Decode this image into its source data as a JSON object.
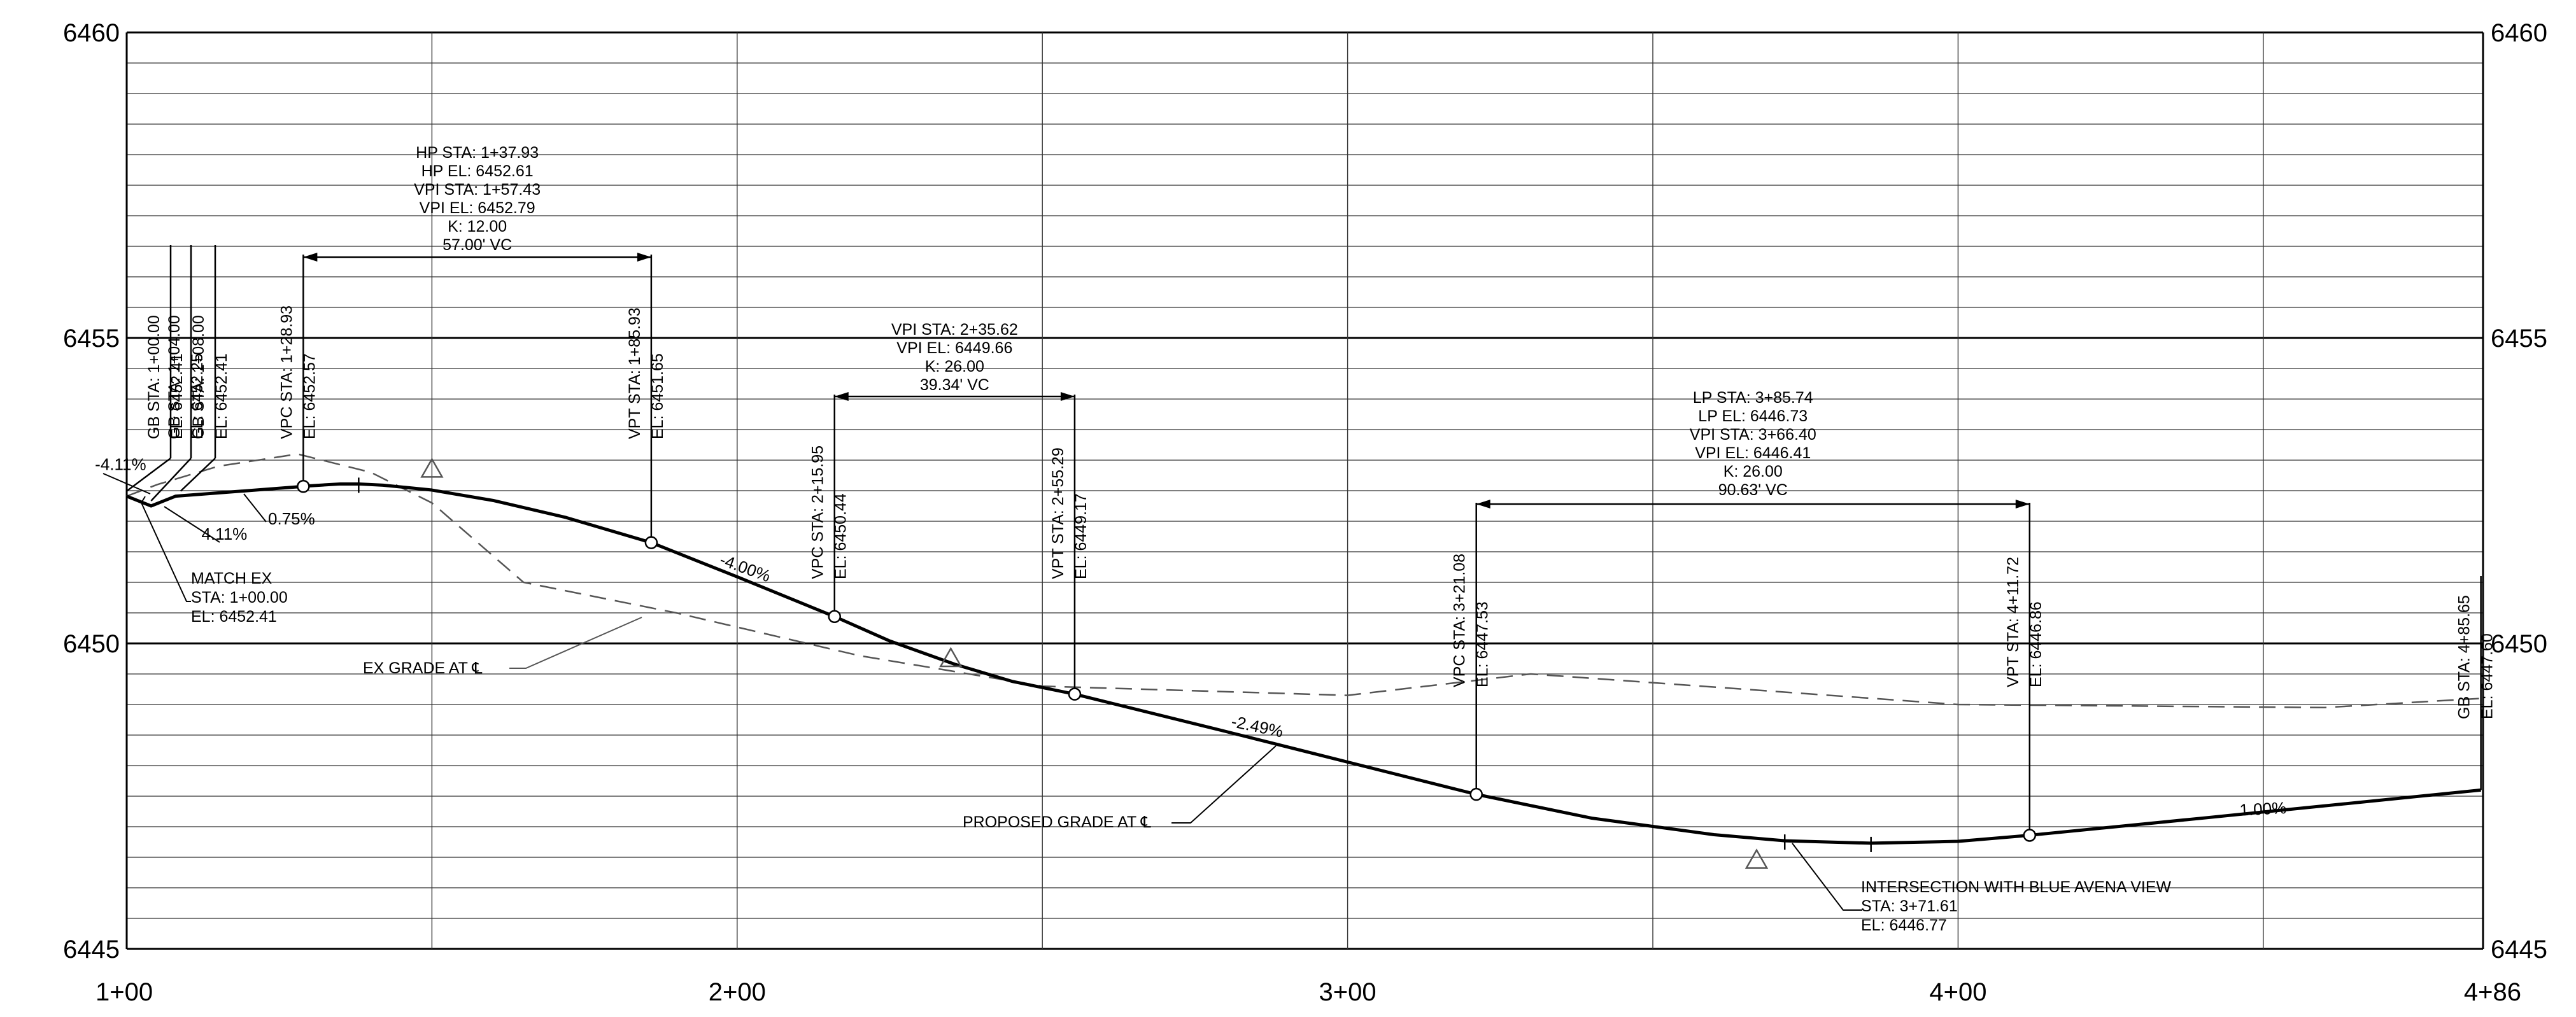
{
  "chart_data": {
    "type": "line",
    "xlim": [
      100,
      486
    ],
    "ylim": [
      6445,
      6460
    ],
    "x_tick_labels": [
      "1+00",
      "2+00",
      "3+00",
      "4+00",
      "4+86"
    ],
    "y_tick_labels": [
      "6460",
      "6455",
      "6450",
      "6445"
    ],
    "grid": true,
    "series": [
      {
        "name": "PROPOSED GRADE AT ℄",
        "points": [
          [
            100,
            6452.41
          ],
          [
            104,
            6452.25
          ],
          [
            108,
            6452.41
          ],
          [
            128.93,
            6452.57
          ],
          [
            130,
            6452.58
          ],
          [
            135,
            6452.61
          ],
          [
            138,
            6452.61
          ],
          [
            142,
            6452.59
          ],
          [
            150,
            6452.51
          ],
          [
            160,
            6452.34
          ],
          [
            172,
            6452.06
          ],
          [
            185.93,
            6451.65
          ],
          [
            200,
            6451.09
          ],
          [
            215.95,
            6450.44
          ],
          [
            225,
            6450.04
          ],
          [
            235.62,
            6449.66
          ],
          [
            245,
            6449.38
          ],
          [
            255.29,
            6449.17
          ],
          [
            280,
            6448.56
          ],
          [
            321.08,
            6447.53
          ],
          [
            340,
            6447.14
          ],
          [
            360,
            6446.87
          ],
          [
            371.61,
            6446.77
          ],
          [
            385.74,
            6446.73
          ],
          [
            400,
            6446.76
          ],
          [
            411.72,
            6446.86
          ],
          [
            440,
            6447.14
          ],
          [
            485.65,
            6447.6
          ]
        ]
      },
      {
        "name": "EX GRADE AT ℄",
        "points": [
          [
            100,
            6452.41
          ],
          [
            105,
            6452.6
          ],
          [
            115,
            6452.9
          ],
          [
            128,
            6453.1
          ],
          [
            140,
            6452.8
          ],
          [
            150,
            6452.3
          ],
          [
            165,
            6451.0
          ],
          [
            190,
            6450.5
          ],
          [
            220,
            6449.8
          ],
          [
            250,
            6449.3
          ],
          [
            300,
            6449.15
          ],
          [
            330,
            6449.5
          ],
          [
            400,
            6449.0
          ],
          [
            460,
            6448.95
          ],
          [
            485.65,
            6449.1
          ]
        ]
      }
    ],
    "curve_labels": [
      {
        "id": "hp",
        "lines": [
          "HP  STA:  1+37.93",
          "HP  EL:  6452.61",
          "VPI  STA:  1+57.43",
          "VPI  EL:  6452.79",
          "K:  12.00",
          "57.00'  VC"
        ],
        "x_start": 128.93,
        "x_end": 185.93
      },
      {
        "id": "vpi2",
        "lines": [
          "VPI  STA:  2+35.62",
          "VPI  EL:  6449.66",
          "K:  26.00",
          "39.34'  VC"
        ],
        "x_start": 215.95,
        "x_end": 255.29
      },
      {
        "id": "lp",
        "lines": [
          "LP  STA:  3+85.74",
          "LP  EL:  6446.73",
          "VPI  STA:  3+66.40",
          "VPI  EL:  6446.41",
          "K:  26.00",
          "90.63'  VC"
        ],
        "x_start": 321.08,
        "x_end": 411.72
      }
    ],
    "point_labels": [
      {
        "id": "gb1",
        "x": 100,
        "y": 6452.41,
        "line1": "GB  STA: 1+00.00",
        "line2": "EL: 6452.41"
      },
      {
        "id": "gb2",
        "x": 104,
        "y": 6452.25,
        "line1": "GB  STA: 1+04.00",
        "line2": "EL: 6452.25"
      },
      {
        "id": "gb3",
        "x": 108,
        "y": 6452.41,
        "line1": "GB  STA: 1+08.00",
        "line2": "EL: 6452.41"
      },
      {
        "id": "vpc1",
        "x": 128.93,
        "y": 6452.57,
        "line1": "VPC  STA:  1+28.93",
        "line2": "EL:  6452.57"
      },
      {
        "id": "vpt1",
        "x": 185.93,
        "y": 6451.65,
        "line1": "VPT  STA:  1+85.93",
        "line2": "EL:  6451.65"
      },
      {
        "id": "vpc2",
        "x": 215.95,
        "y": 6450.44,
        "line1": "VPC  STA:  2+15.95",
        "line2": "EL:  6450.44"
      },
      {
        "id": "vpt2",
        "x": 255.29,
        "y": 6449.17,
        "line1": "VPT  STA:  2+55.29",
        "line2": "EL:  6449.17"
      },
      {
        "id": "vpc3",
        "x": 321.08,
        "y": 6447.53,
        "line1": "VPC  STA:  3+21.08",
        "line2": "EL:  6447.53"
      },
      {
        "id": "vpt3",
        "x": 411.72,
        "y": 6446.86,
        "line1": "VPT  STA:  4+11.72",
        "line2": "EL:  6446.86"
      },
      {
        "id": "gb4",
        "x": 485.65,
        "y": 6447.6,
        "line1": "GB  STA: 4+85.65",
        "line2": "EL: 6447.60"
      }
    ],
    "grades": [
      {
        "id": "g1",
        "text": "-4.11%",
        "x": 99,
        "y": 6452.84
      },
      {
        "id": "g2",
        "text": "0.75%",
        "x": 127,
        "y": 6451.95
      },
      {
        "id": "g3",
        "text": "4.11%",
        "x": 116,
        "y": 6451.7
      },
      {
        "id": "g4",
        "text": "-4.00%",
        "x": 201,
        "y": 6451.15
      },
      {
        "id": "g5",
        "text": "-2.49%",
        "x": 285,
        "y": 6448.55
      },
      {
        "id": "g6",
        "text": "1.00%",
        "x": 450,
        "y": 6447.2
      }
    ],
    "annotations": [
      {
        "id": "match",
        "lines": [
          "MATCH  EX",
          "STA: 1+00.00",
          "EL: 6452.41"
        ]
      },
      {
        "id": "exgrade",
        "text": "EX  GRADE  AT  ℄"
      },
      {
        "id": "propgrade",
        "text": "PROPOSED  GRADE  AT  ℄"
      },
      {
        "id": "intersection",
        "lines": [
          "INTERSECTION  WITH  BLUE  AVENA  VIEW",
          "STA: 3+71.61",
          "EL: 6446.77"
        ]
      }
    ]
  },
  "colors": {
    "ink": "#000000",
    "grid": "#333333",
    "existing": "#555555"
  }
}
